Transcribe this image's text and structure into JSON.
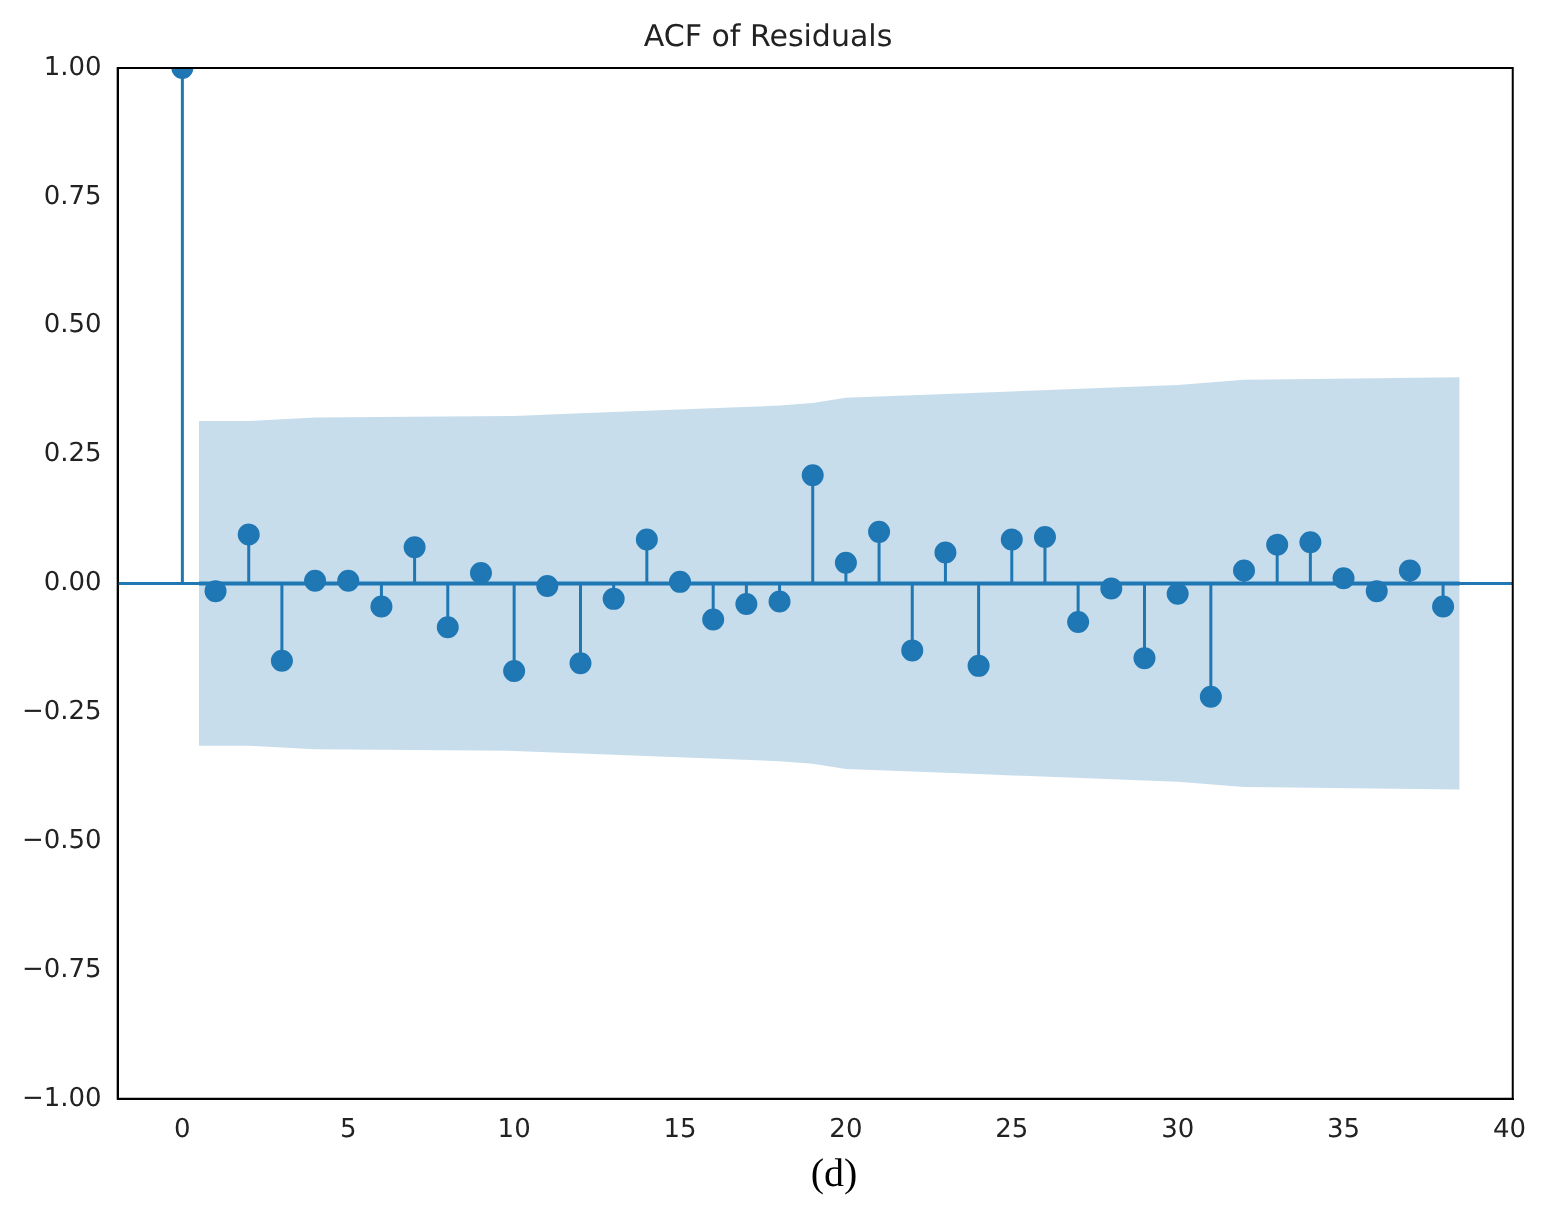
{
  "chart_data": {
    "type": "lollipop",
    "title": "ACF of Residuals",
    "x": [
      0,
      1,
      2,
      3,
      4,
      5,
      6,
      7,
      8,
      9,
      10,
      11,
      12,
      13,
      14,
      15,
      16,
      17,
      18,
      19,
      20,
      21,
      22,
      23,
      24,
      25,
      26,
      27,
      28,
      29,
      30,
      31,
      32,
      33,
      34,
      35,
      36,
      37,
      38
    ],
    "series": [
      {
        "color": "#1f77b4",
        "marker": "circle",
        "values": [
          1.0,
          -0.015,
          0.095,
          -0.15,
          0.005,
          0.005,
          -0.045,
          0.07,
          -0.085,
          0.02,
          -0.17,
          -0.005,
          -0.155,
          -0.03,
          0.085,
          0.003,
          -0.07,
          -0.04,
          -0.035,
          0.21,
          0.04,
          0.1,
          -0.13,
          0.06,
          -0.16,
          0.085,
          0.09,
          -0.075,
          -0.01,
          -0.145,
          -0.02,
          -0.22,
          0.025,
          0.075,
          0.08,
          0.01,
          -0.015,
          0.025,
          -0.045
        ]
      },
      {
        "type": "line",
        "color": "#1f77b4",
        "marker": "none",
        "x": [
          0.5,
          2,
          4,
          10,
          12,
          18,
          19,
          20,
          24,
          30,
          32,
          38.5
        ],
        "values": [
          0,
          0,
          0,
          0,
          0,
          0,
          0,
          0,
          0,
          0,
          0,
          0
        ],
        "lower": [
          -0.315,
          -0.315,
          -0.322,
          -0.325,
          -0.33,
          -0.345,
          -0.35,
          -0.36,
          -0.37,
          -0.385,
          -0.395,
          -0.4
        ],
        "upper": [
          0.315,
          0.315,
          0.322,
          0.325,
          0.33,
          0.345,
          0.35,
          0.36,
          0.37,
          0.385,
          0.395,
          0.4
        ]
      }
    ],
    "ref_lines": [
      {
        "axis": "y",
        "value": 0,
        "color": "#1f77b4"
      }
    ],
    "xlim": [
      -1.95,
      40.1
    ],
    "xticks": [
      0,
      5,
      10,
      15,
      20,
      25,
      30,
      35,
      40
    ],
    "ylim": [
      -1,
      1
    ],
    "yticks": [
      {
        "value": -1,
        "label": "−1.00"
      },
      {
        "value": -0.75,
        "label": "−0.75"
      },
      {
        "value": -0.5,
        "label": "−0.50"
      },
      {
        "value": -0.25,
        "label": "−0.25"
      },
      {
        "value": 0,
        "label": "0.00"
      },
      {
        "value": 0.25,
        "label": "0.25"
      },
      {
        "value": 0.5,
        "label": "0.50"
      },
      {
        "value": 0.75,
        "label": "0.75"
      },
      {
        "value": 1,
        "label": "1.00"
      }
    ],
    "grid": false,
    "legend": false,
    "annotations": [
      "(d)"
    ]
  }
}
